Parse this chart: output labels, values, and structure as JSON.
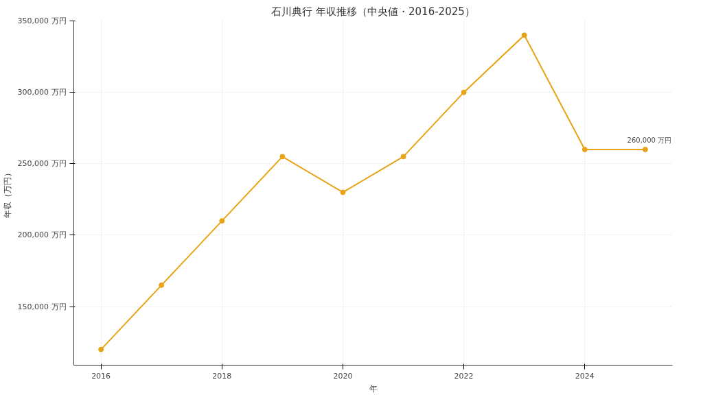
{
  "chart_data": {
    "type": "line",
    "title": "石川典行 年収推移（中央値・2016-2025）",
    "xlabel": "年",
    "ylabel": "年収（万円）",
    "x": [
      2016,
      2017,
      2018,
      2019,
      2020,
      2021,
      2022,
      2023,
      2024,
      2025
    ],
    "series": [
      {
        "color": "#e8a317",
        "values": [
          120000,
          165000,
          210000,
          255000,
          230000,
          255000,
          300000,
          340000,
          260000,
          260000
        ]
      }
    ],
    "xlim": [
      2015.55,
      2025.45
    ],
    "ylim": [
      109000,
      350000
    ],
    "xticks": [
      2016,
      2018,
      2020,
      2022,
      2024
    ],
    "yticks": [
      {
        "value": 150000,
        "label": "150,000 万円"
      },
      {
        "value": 200000,
        "label": "200,000 万円"
      },
      {
        "value": 250000,
        "label": "250,000 万円"
      },
      {
        "value": 300000,
        "label": "300,000 万円"
      },
      {
        "value": 350000,
        "label": "350,000 万円"
      }
    ],
    "annotations": [
      {
        "text": "260,000 万円",
        "x": 2025,
        "y": 260000
      }
    ],
    "grid": true,
    "marker": "circle",
    "line_style": "solid"
  }
}
